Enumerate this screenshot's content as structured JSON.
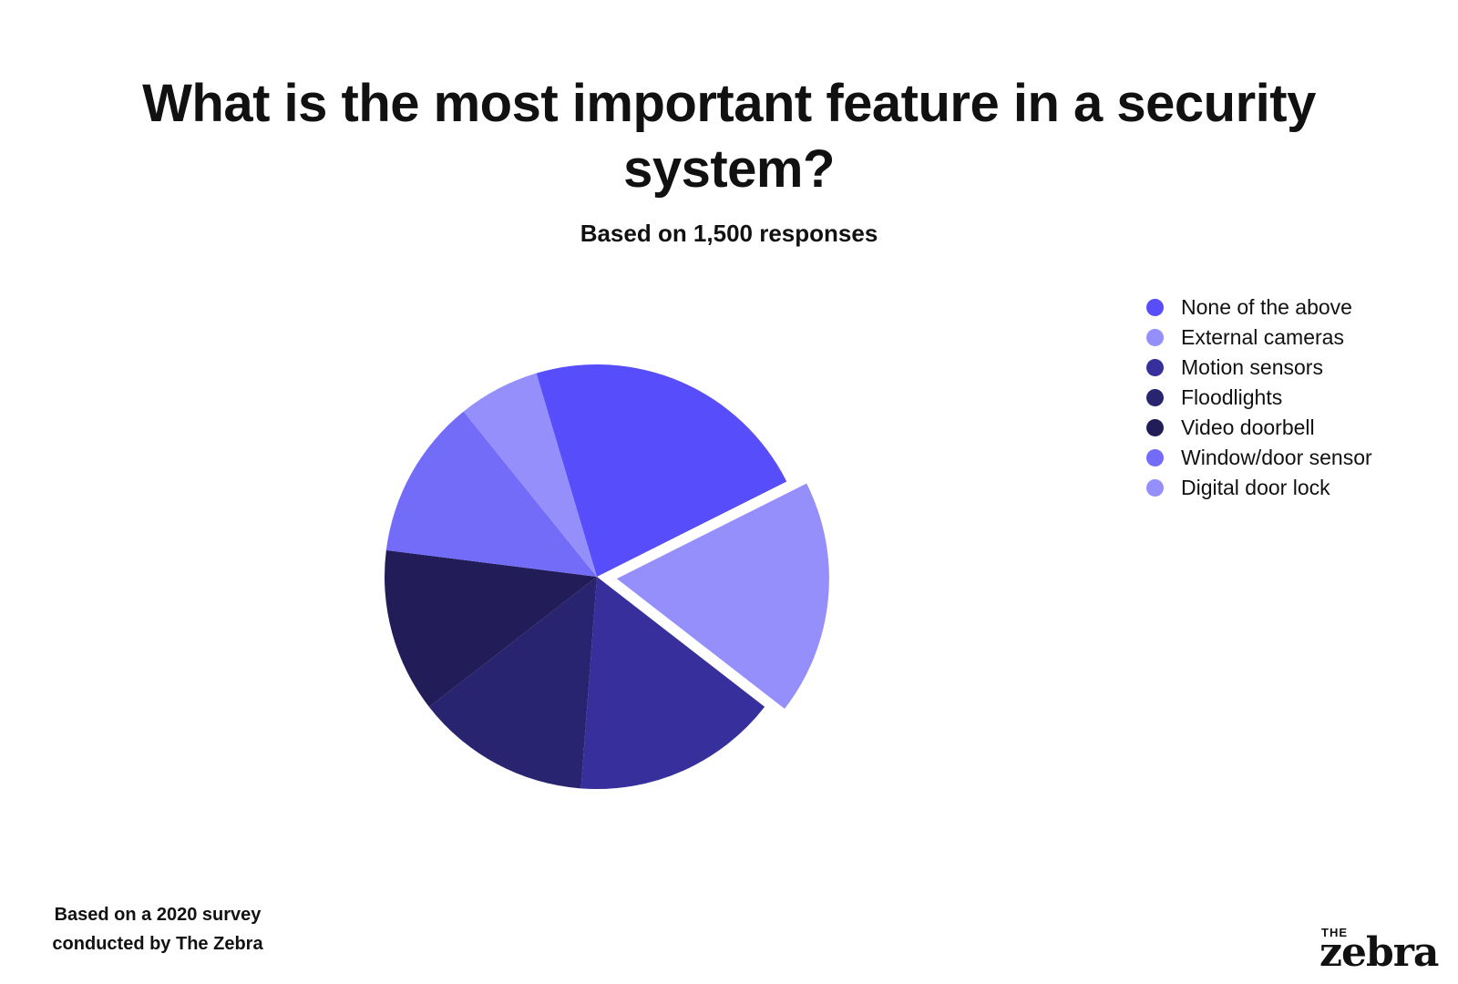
{
  "footnote": "Based on a 2020 survey conducted by The Zebra",
  "logo": {
    "small": "THE",
    "big": "zebra"
  },
  "chart_data": {
    "type": "pie",
    "title": "What is the most important feature in a security system?",
    "subtitle": "Based on 1,500 responses",
    "legend_position": "right",
    "slices": [
      {
        "label": "None of the above",
        "value": 22.2,
        "color": "#574dfa",
        "exploded": false
      },
      {
        "label": "External cameras",
        "value": 17.9,
        "color": "#948ffb",
        "exploded": true
      },
      {
        "label": "Motion sensors",
        "value": 15.7,
        "color": "#37309c",
        "exploded": false
      },
      {
        "label": "Floodlights",
        "value": 13.3,
        "color": "#28246f",
        "exploded": false
      },
      {
        "label": "Video doorbell",
        "value": 12.5,
        "color": "#221d58",
        "exploded": false
      },
      {
        "label": "Window/door sensor",
        "value": 12.2,
        "color": "#736cf8",
        "exploded": false
      },
      {
        "label": "Digital door lock",
        "value": 6.2,
        "color": "#948ffb",
        "exploded": false
      }
    ]
  }
}
